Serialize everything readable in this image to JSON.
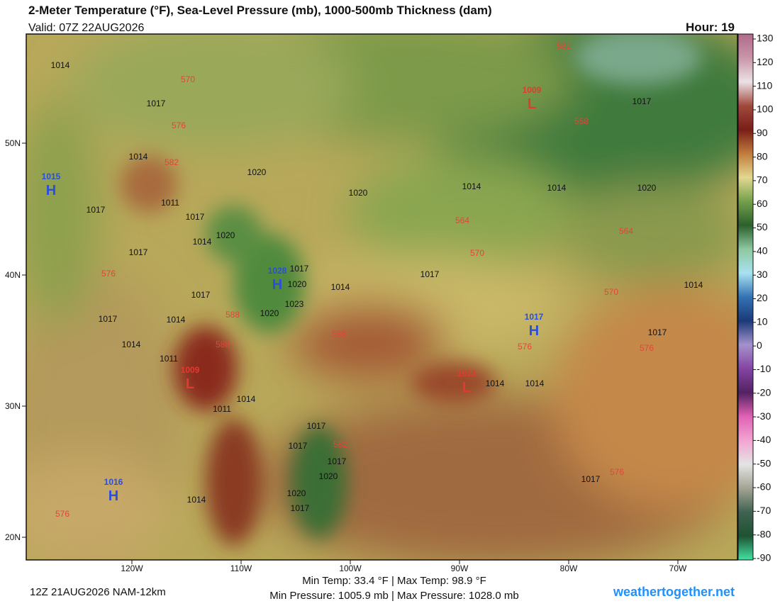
{
  "header": {
    "title": "2-Meter Temperature (°F), Sea-Level Pressure (mb), 1000-500mb Thickness (dam)",
    "valid": "Valid: 07Z 22AUG2026",
    "hour": "Hour: 19"
  },
  "map": {
    "lat_labels": [
      "50N",
      "40N",
      "30N",
      "20N"
    ],
    "lon_labels": [
      "120W",
      "110W",
      "100W",
      "90W",
      "80W",
      "70W"
    ],
    "pressure_centers": [
      {
        "letter": "H",
        "value": 1015
      },
      {
        "letter": "H",
        "value": 1028
      },
      {
        "letter": "H",
        "value": 1017
      },
      {
        "letter": "H",
        "value": 1016
      },
      {
        "letter": "L",
        "value": 1009
      },
      {
        "letter": "L",
        "value": 1009
      },
      {
        "letter": "L",
        "value": 1013
      }
    ],
    "isobar_labels": [
      1014,
      1017,
      1014,
      1020,
      1020,
      1014,
      1014,
      1020,
      1017,
      1017,
      1011,
      1017,
      1020,
      1014,
      1017,
      1017,
      1020,
      1023,
      1020,
      1014,
      1017,
      1017,
      1014,
      1017,
      1014,
      1011,
      1011,
      1014,
      1017,
      1017,
      1017,
      1020,
      1020,
      1017,
      1014,
      1014,
      1014,
      1014,
      1017,
      1017
    ],
    "thickness_labels": [
      570,
      576,
      582,
      582,
      558,
      564,
      564,
      570,
      570,
      576,
      588,
      588,
      588,
      576,
      576,
      582,
      576,
      576
    ]
  },
  "colorbar": {
    "ticks": [
      130,
      120,
      110,
      100,
      90,
      80,
      70,
      60,
      50,
      40,
      30,
      20,
      10,
      0,
      -10,
      -20,
      -30,
      -40,
      -50,
      -60,
      -70,
      -80,
      -90
    ],
    "colors": [
      "#b06a8c",
      "#c896a8",
      "#ece2e6",
      "#a04a3c",
      "#7a1e18",
      "#c07c3c",
      "#e2d890",
      "#74a04c",
      "#2c602c",
      "#8ec8a0",
      "#a8e2f0",
      "#3472b4",
      "#1a3a78",
      "#a492cc",
      "#8444a4",
      "#522262",
      "#e062b4",
      "#f2a4d2",
      "#e4e4e4",
      "#a4a494",
      "#406252",
      "#1e5232",
      "#44e2a4"
    ]
  },
  "footer": {
    "run": "12Z 21AUG2026 NAM-12km",
    "temps": "Min Temp:  33.4 °F | Max Temp:  98.9 °F",
    "pressures": "Min Pressure: 1005.9 mb | Max Pressure: 1028.0 mb",
    "site": "weathertogether.net"
  }
}
